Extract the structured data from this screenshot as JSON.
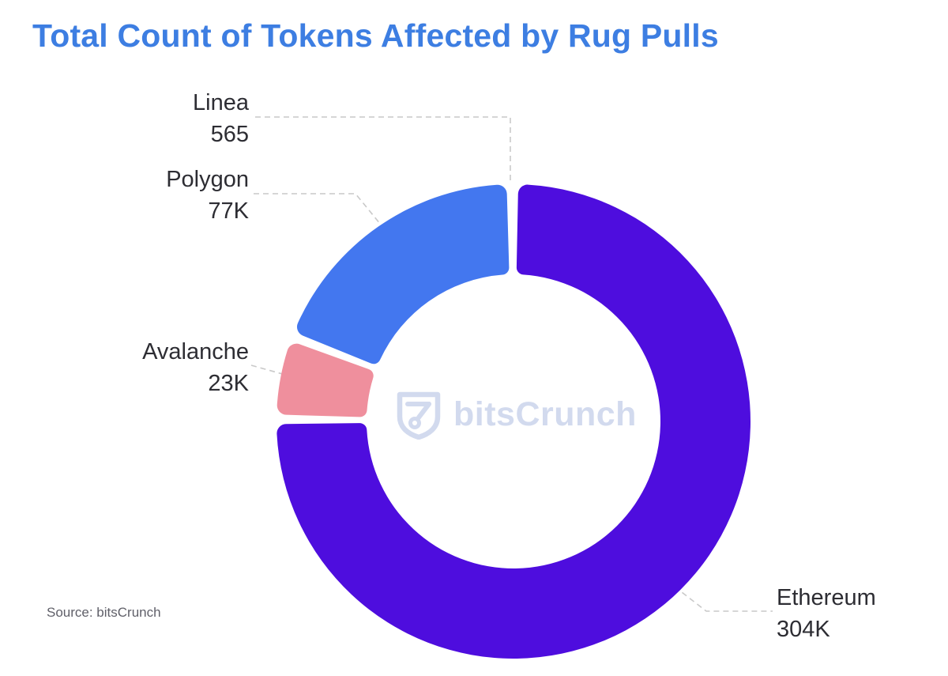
{
  "title": "Total Count of Tokens Affected by Rug Pulls",
  "source": "Source: bitsCrunch",
  "watermark": {
    "text": "bitsCrunch",
    "icon": "bitscrunch-shield-icon"
  },
  "colors": {
    "title": "#3D7EE2",
    "label_text": "#2D2D33",
    "source_text": "#606069",
    "leader_line": "#C9C9C9",
    "watermark": "#CBD4EC",
    "background": "#FFFFFF",
    "ethereum": "#4E0DDE",
    "polygon": "#4377EF",
    "avalanche": "#EF8F9D"
  },
  "chart_data": {
    "type": "pie",
    "subtype": "donut",
    "title": "Total Count of Tokens Affected by Rug Pulls",
    "total": 404565,
    "start_angle": "top",
    "direction": "clockwise",
    "legend_position": "callout-labels",
    "segments": [
      {
        "label": "Ethereum",
        "value": 304000,
        "display": "304K",
        "color": "#4E0DDE"
      },
      {
        "label": "Avalanche",
        "value": 23000,
        "display": "23K",
        "color": "#EF8F9D"
      },
      {
        "label": "Polygon",
        "value": 77000,
        "display": "77K",
        "color": "#4377EF"
      },
      {
        "label": "Linea",
        "value": 565,
        "display": "565"
      }
    ]
  }
}
